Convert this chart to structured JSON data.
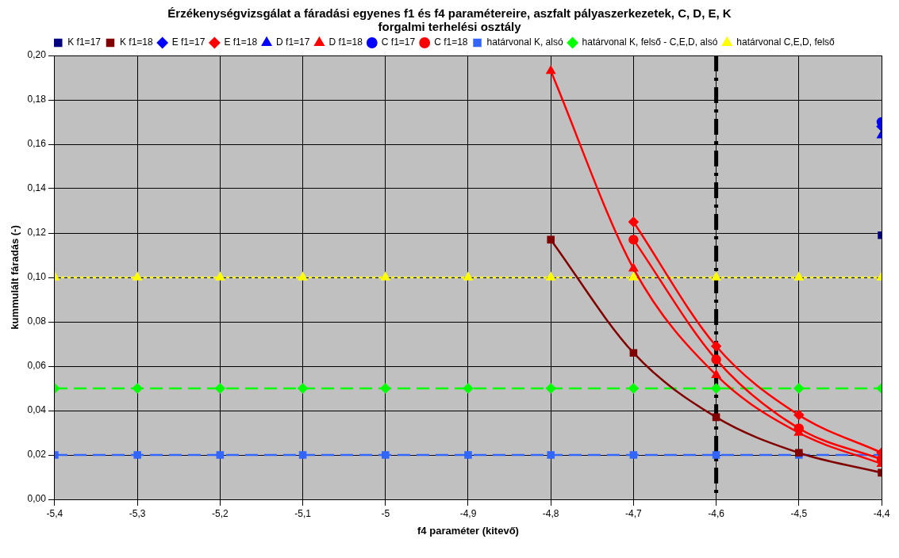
{
  "chart_data": {
    "type": "line",
    "title": "Érzékenységvizsgálat a fáradási egyenes f1 és f4 paramétereire, aszfalt pályaszerkezetek, C, D, E, K forgalmi terhelési osztály",
    "xlabel": "f4 paraméter (kitevő)",
    "ylabel": "kummulált fáradás (-)",
    "x": [
      -5.4,
      -5.3,
      -5.2,
      -5.1,
      -5.0,
      -4.9,
      -4.8,
      -4.7,
      -4.6,
      -4.5,
      -4.4
    ],
    "series": [
      {
        "name": "K f1=17",
        "color": "#000080",
        "marker": "square",
        "values": [
          null,
          null,
          null,
          null,
          null,
          null,
          null,
          null,
          null,
          null,
          0.119
        ]
      },
      {
        "name": "K f1=18",
        "color": "#800000",
        "marker": "square",
        "values": [
          null,
          null,
          null,
          null,
          null,
          null,
          0.117,
          0.066,
          0.037,
          0.021,
          0.012
        ]
      },
      {
        "name": "E f1=17",
        "color": "#0000ff",
        "marker": "diamond",
        "values": [
          null,
          null,
          null,
          null,
          null,
          null,
          null,
          null,
          null,
          null,
          0.168
        ]
      },
      {
        "name": "E f1=18",
        "color": "#ff0000",
        "marker": "diamond",
        "values": [
          null,
          null,
          null,
          null,
          null,
          null,
          null,
          0.125,
          0.069,
          0.038,
          0.021
        ]
      },
      {
        "name": "D f1=17",
        "color": "#0000ff",
        "marker": "triangle",
        "values": [
          null,
          null,
          null,
          null,
          null,
          null,
          null,
          null,
          null,
          null,
          0.164
        ]
      },
      {
        "name": "D f1=18",
        "color": "#ff0000",
        "marker": "triangle",
        "values": [
          null,
          null,
          null,
          null,
          null,
          null,
          0.193,
          0.104,
          0.056,
          0.03,
          0.016
        ]
      },
      {
        "name": "C f1=17",
        "color": "#0000ff",
        "marker": "circle",
        "values": [
          null,
          null,
          null,
          null,
          null,
          null,
          null,
          null,
          null,
          null,
          0.17
        ]
      },
      {
        "name": "C f1=18",
        "color": "#ff0000",
        "marker": "circle",
        "values": [
          null,
          null,
          null,
          null,
          null,
          null,
          null,
          0.117,
          0.063,
          0.032,
          0.018
        ]
      },
      {
        "name": "határvonal K, alsó",
        "color": "#3366ff",
        "marker": "square",
        "line_style": "dashed",
        "values": [
          0.02,
          0.02,
          0.02,
          0.02,
          0.02,
          0.02,
          0.02,
          0.02,
          0.02,
          0.02,
          0.02
        ]
      },
      {
        "name": "határvonal K, felső - C,E,D, alsó",
        "color": "#00ff00",
        "marker": "diamond",
        "line_style": "dashed",
        "values": [
          0.05,
          0.05,
          0.05,
          0.05,
          0.05,
          0.05,
          0.05,
          0.05,
          0.05,
          0.05,
          0.05
        ]
      },
      {
        "name": "határvonal C,E,D, felső",
        "color": "#ffff00",
        "marker": "triangle",
        "line_style": "dotted",
        "values": [
          0.1,
          0.1,
          0.1,
          0.1,
          0.1,
          0.1,
          0.1,
          0.1,
          0.1,
          0.1,
          0.1
        ]
      }
    ],
    "ref_lines": [
      {
        "axis": "x",
        "value": -4.6,
        "color": "#000000",
        "line_style": "dashed"
      }
    ],
    "xlim": [
      -5.4,
      -4.4
    ],
    "xticks": [
      {
        "value": -5.4,
        "label": "-5,4"
      },
      {
        "value": -5.3,
        "label": "-5,3"
      },
      {
        "value": -5.2,
        "label": "-5,2"
      },
      {
        "value": -5.1,
        "label": "-5,1"
      },
      {
        "value": -5,
        "label": "-5"
      },
      {
        "value": -4.9,
        "label": "-4,9"
      },
      {
        "value": -4.8,
        "label": "-4,8"
      },
      {
        "value": -4.7,
        "label": "-4,7"
      },
      {
        "value": -4.6,
        "label": "-4,6"
      },
      {
        "value": -4.5,
        "label": "-4,5"
      },
      {
        "value": -4.4,
        "label": "-4,4"
      }
    ],
    "ylim": [
      0,
      0.2
    ],
    "yticks": [
      {
        "value": 0,
        "label": "0,00"
      },
      {
        "value": 0.02,
        "label": "0,02"
      },
      {
        "value": 0.04,
        "label": "0,04"
      },
      {
        "value": 0.06,
        "label": "0,06"
      },
      {
        "value": 0.08,
        "label": "0,08"
      },
      {
        "value": 0.1,
        "label": "0,10"
      },
      {
        "value": 0.12,
        "label": "0,12"
      },
      {
        "value": 0.14,
        "label": "0,14"
      },
      {
        "value": 0.16,
        "label": "0,16"
      },
      {
        "value": 0.18,
        "label": "0,18"
      },
      {
        "value": 0.2,
        "label": "0,20"
      }
    ],
    "grid": true,
    "legend": "top"
  }
}
